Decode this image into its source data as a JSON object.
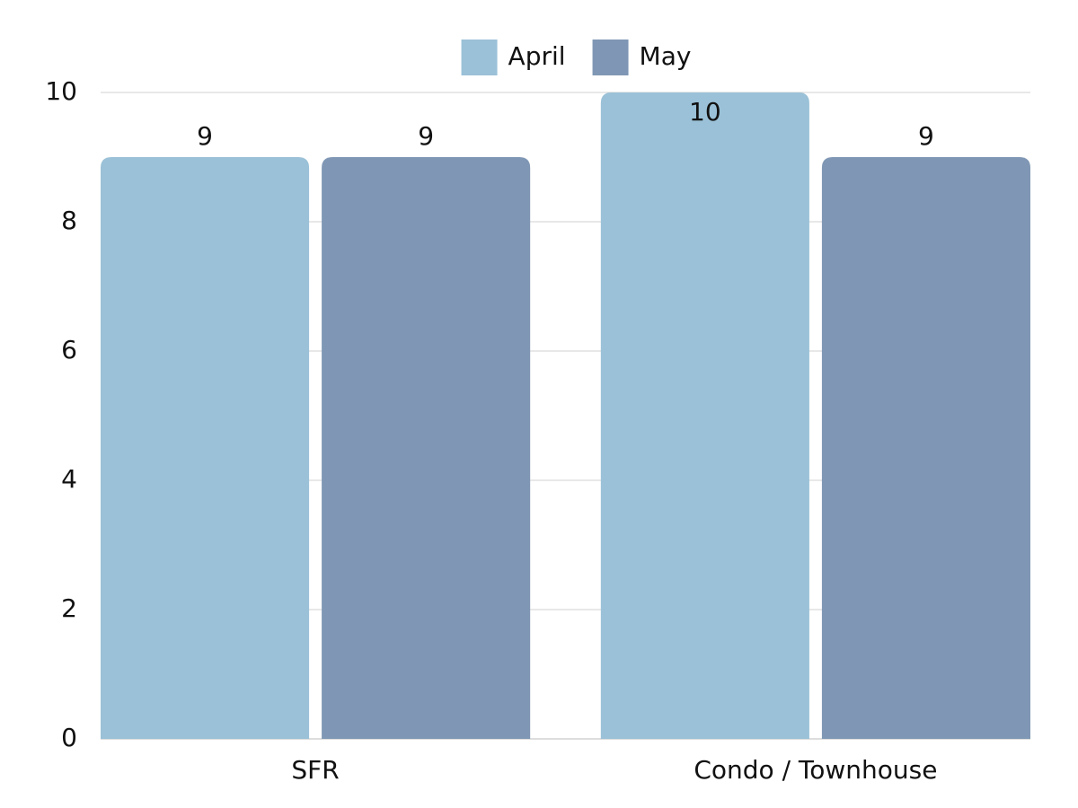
{
  "chart_data": {
    "type": "bar",
    "categories": [
      "SFR",
      "Condo / Townhouse"
    ],
    "series": [
      {
        "name": "April",
        "color": "#9ac1d7",
        "values": [
          9,
          10
        ]
      },
      {
        "name": "May",
        "color": "#7f97b4",
        "values": [
          9,
          9
        ]
      }
    ],
    "ylim": [
      0,
      10
    ],
    "yticks": [
      0,
      2,
      4,
      6,
      8,
      10
    ],
    "grid": true,
    "legend": "top"
  }
}
